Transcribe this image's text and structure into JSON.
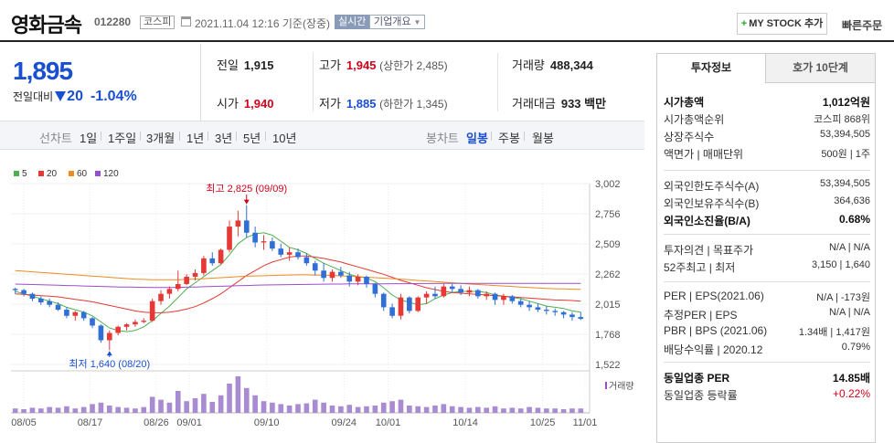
{
  "header": {
    "stock_name": "영화금속",
    "stock_code": "012280",
    "market": "코스피",
    "datetime": "2021.11.04 12:16  기준(장중)",
    "realtime_label": "실시간",
    "overview_label": "기업개요",
    "mystock_label": "MY STOCK 추가",
    "quick_order_label": "빠른주문"
  },
  "price": {
    "current": "1,895",
    "change_label": "전일대비",
    "change_amount": "20",
    "change_pct": "-1.04%"
  },
  "stats": {
    "prev_close_label": "전일",
    "prev_close": "1,915",
    "high_label": "고가",
    "high": "1,945",
    "upper_limit": "(상한가 2,485)",
    "volume_label": "거래량",
    "volume": "488,344",
    "open_label": "시가",
    "open": "1,940",
    "low_label": "저가",
    "low": "1,885",
    "lower_limit": "(하한가 1,345)",
    "amount_label": "거래대금",
    "amount": "933 백만"
  },
  "period_bar": {
    "line_label": "선차트",
    "line_options": [
      "1일",
      "1주일",
      "3개월",
      "1년",
      "3년",
      "5년",
      "10년"
    ],
    "candle_label": "봉차트",
    "candle_options": [
      "일봉",
      "주봉",
      "월봉"
    ],
    "selected_candle": "일봉"
  },
  "chart_data": {
    "type": "candlestick",
    "legend": [
      {
        "name": "5",
        "color": "#4caf50"
      },
      {
        "name": "20",
        "color": "#e53935"
      },
      {
        "name": "60",
        "color": "#ef8a1e"
      },
      {
        "name": "120",
        "color": "#9c4dcc"
      }
    ],
    "yticks": [
      "3,002",
      "2,756",
      "2,509",
      "2,262",
      "2,015",
      "1,768",
      "1,522"
    ],
    "ylim": [
      1522,
      3002
    ],
    "xticks": [
      "08/05",
      "08/17",
      "08/26",
      "09/01",
      "09/10",
      "09/24",
      "10/01",
      "10/14",
      "10/25",
      "11/01"
    ],
    "high_annotation": "최고 2,825 (09/09)",
    "low_annotation": "최저 1,640 (08/20)",
    "volume_label": "거래량",
    "candles": [
      [
        2140,
        2150,
        2100,
        2130
      ],
      [
        2130,
        2140,
        2080,
        2100
      ],
      [
        2100,
        2110,
        2040,
        2060
      ],
      [
        2060,
        2080,
        2010,
        2030
      ],
      [
        2040,
        2060,
        1990,
        2010
      ],
      [
        2010,
        2030,
        1960,
        1970
      ],
      [
        1970,
        1990,
        1900,
        1920
      ],
      [
        1920,
        1960,
        1880,
        1950
      ],
      [
        1950,
        1960,
        1880,
        1900
      ],
      [
        1900,
        1910,
        1820,
        1840
      ],
      [
        1840,
        1850,
        1700,
        1720
      ],
      [
        1720,
        1800,
        1640,
        1780
      ],
      [
        1780,
        1840,
        1760,
        1830
      ],
      [
        1830,
        1860,
        1800,
        1850
      ],
      [
        1850,
        1890,
        1830,
        1870
      ],
      [
        1870,
        1900,
        1860,
        1880
      ],
      [
        1880,
        2060,
        1870,
        2040
      ],
      [
        2040,
        2130,
        2010,
        2100
      ],
      [
        2100,
        2160,
        2060,
        2140
      ],
      [
        2140,
        2290,
        2120,
        2180
      ],
      [
        2180,
        2260,
        2170,
        2240
      ],
      [
        2240,
        2300,
        2210,
        2270
      ],
      [
        2270,
        2410,
        2250,
        2390
      ],
      [
        2390,
        2440,
        2330,
        2350
      ],
      [
        2350,
        2470,
        2340,
        2460
      ],
      [
        2460,
        2700,
        2440,
        2650
      ],
      [
        2650,
        2780,
        2570,
        2700
      ],
      [
        2700,
        2825,
        2560,
        2600
      ],
      [
        2600,
        2650,
        2480,
        2520
      ],
      [
        2520,
        2580,
        2460,
        2530
      ],
      [
        2530,
        2560,
        2450,
        2470
      ],
      [
        2470,
        2510,
        2400,
        2420
      ],
      [
        2420,
        2480,
        2370,
        2440
      ],
      [
        2440,
        2470,
        2380,
        2400
      ],
      [
        2400,
        2430,
        2330,
        2350
      ],
      [
        2350,
        2370,
        2250,
        2290
      ],
      [
        2290,
        2350,
        2200,
        2230
      ],
      [
        2230,
        2300,
        2200,
        2280
      ],
      [
        2280,
        2320,
        2230,
        2250
      ],
      [
        2250,
        2280,
        2160,
        2200
      ],
      [
        2200,
        2260,
        2170,
        2240
      ],
      [
        2240,
        2250,
        2150,
        2180
      ],
      [
        2180,
        2190,
        2070,
        2100
      ],
      [
        2100,
        2110,
        1960,
        1990
      ],
      [
        1990,
        2020,
        1900,
        1920
      ],
      [
        1920,
        2100,
        1890,
        2070
      ],
      [
        2070,
        2080,
        1940,
        1960
      ],
      [
        1960,
        2080,
        1950,
        2070
      ],
      [
        2070,
        2120,
        2020,
        2100
      ],
      [
        2100,
        2160,
        2060,
        2080
      ],
      [
        2080,
        2180,
        2070,
        2160
      ],
      [
        2160,
        2180,
        2110,
        2140
      ],
      [
        2140,
        2170,
        2090,
        2110
      ],
      [
        2110,
        2160,
        2080,
        2130
      ],
      [
        2130,
        2140,
        2060,
        2080
      ],
      [
        2080,
        2120,
        2050,
        2100
      ],
      [
        2100,
        2110,
        2010,
        2050
      ],
      [
        2050,
        2100,
        2010,
        2080
      ],
      [
        2080,
        2090,
        2020,
        2040
      ],
      [
        2040,
        2060,
        1990,
        2010
      ],
      [
        2010,
        2040,
        1960,
        1990
      ],
      [
        1990,
        2020,
        1950,
        1970
      ],
      [
        1970,
        2000,
        1930,
        1960
      ],
      [
        1960,
        1980,
        1920,
        1950
      ],
      [
        1950,
        1960,
        1900,
        1930
      ],
      [
        1930,
        1950,
        1880,
        1910
      ],
      [
        1910,
        1950,
        1885,
        1895
      ]
    ],
    "volumes": [
      6,
      5,
      7,
      6,
      8,
      7,
      9,
      6,
      8,
      12,
      14,
      10,
      8,
      7,
      6,
      8,
      22,
      18,
      14,
      30,
      16,
      20,
      26,
      15,
      24,
      40,
      50,
      34,
      24,
      16,
      14,
      12,
      10,
      12,
      13,
      18,
      14,
      10,
      9,
      11,
      8,
      9,
      10,
      14,
      16,
      18,
      10,
      9,
      8,
      10,
      12,
      9,
      8,
      7,
      8,
      7,
      9,
      6,
      7,
      6,
      8,
      7,
      6,
      6,
      5,
      6,
      6
    ],
    "ma": {
      "5": [
        2120,
        2100,
        2080,
        2060,
        2040,
        2020,
        1990,
        1970,
        1950,
        1920,
        1870,
        1820,
        1800,
        1790,
        1800,
        1830,
        1880,
        1940,
        2000,
        2070,
        2140,
        2190,
        2240,
        2290,
        2340,
        2420,
        2510,
        2560,
        2590,
        2600,
        2580,
        2530,
        2480,
        2460,
        2430,
        2390,
        2350,
        2320,
        2290,
        2260,
        2240,
        2230,
        2200,
        2150,
        2090,
        2050,
        2030,
        2010,
        2020,
        2060,
        2090,
        2110,
        2120,
        2120,
        2120,
        2110,
        2090,
        2080,
        2070,
        2060,
        2040,
        2020,
        2000,
        1990,
        1980,
        1960,
        1950
      ],
      "20": [
        2100,
        2095,
        2090,
        2085,
        2080,
        2075,
        2065,
        2055,
        2045,
        2035,
        2020,
        2005,
        1990,
        1975,
        1960,
        1950,
        1945,
        1945,
        1950,
        1960,
        1975,
        1995,
        2025,
        2060,
        2100,
        2150,
        2200,
        2250,
        2290,
        2330,
        2360,
        2380,
        2400,
        2410,
        2410,
        2400,
        2390,
        2375,
        2360,
        2340,
        2320,
        2300,
        2280,
        2260,
        2235,
        2210,
        2190,
        2170,
        2150,
        2135,
        2120,
        2110,
        2105,
        2100,
        2095,
        2090,
        2085,
        2080,
        2075,
        2070,
        2065,
        2060,
        2055,
        2050,
        2048,
        2045,
        2040
      ],
      "60": [
        2290,
        2285,
        2280,
        2275,
        2270,
        2265,
        2260,
        2255,
        2250,
        2245,
        2240,
        2235,
        2230,
        2225,
        2220,
        2218,
        2216,
        2215,
        2215,
        2216,
        2218,
        2220,
        2224,
        2228,
        2232,
        2236,
        2240,
        2244,
        2246,
        2248,
        2250,
        2252,
        2254,
        2255,
        2255,
        2254,
        2252,
        2250,
        2247,
        2244,
        2240,
        2236,
        2232,
        2228,
        2224,
        2220,
        2215,
        2210,
        2205,
        2200,
        2195,
        2190,
        2185,
        2180,
        2176,
        2172,
        2168,
        2164,
        2160,
        2156,
        2152,
        2148,
        2145,
        2142,
        2140,
        2138,
        2136
      ],
      "120": [
        2180,
        2178,
        2176,
        2174,
        2172,
        2170,
        2168,
        2166,
        2164,
        2162,
        2160,
        2158,
        2156,
        2155,
        2154,
        2153,
        2152,
        2152,
        2152,
        2153,
        2154,
        2156,
        2158,
        2160,
        2162,
        2164,
        2166,
        2168,
        2170,
        2172,
        2173,
        2174,
        2175,
        2176,
        2177,
        2178,
        2179,
        2180,
        2180,
        2181,
        2181,
        2182,
        2182,
        2182,
        2183,
        2183,
        2183,
        2184,
        2184,
        2184,
        2185,
        2185,
        2185,
        2185,
        2186,
        2186,
        2186,
        2186,
        2186,
        2186,
        2186,
        2186,
        2186,
        2186,
        2186,
        2186,
        2186
      ]
    }
  },
  "right_panel": {
    "tab_invest": "투자정보",
    "tab_quote": "호가 10단계",
    "rows1": [
      {
        "l": "시가총액",
        "r": "1,012억원",
        "bold": true
      },
      {
        "l": "시가총액순위",
        "r": "코스피 868위"
      },
      {
        "l": "상장주식수",
        "r": "53,394,505"
      },
      {
        "l": "액면가 | 매매단위",
        "r": "500원 | 1주"
      }
    ],
    "rows2": [
      {
        "l": "외국인한도주식수(A)",
        "r": "53,394,505"
      },
      {
        "l": "외국인보유주식수(B)",
        "r": "364,636"
      },
      {
        "l": "외국인소진율(B/A)",
        "r": "0.68%",
        "bold": true
      }
    ],
    "rows3": [
      {
        "l": "투자의견 | 목표주가",
        "r": "N/A | N/A"
      },
      {
        "l": "52주최고 | 최저",
        "r": "3,150 | 1,640"
      }
    ],
    "rows4": [
      {
        "l": "PER | EPS(2021.06)",
        "r": "N/A | -173원"
      },
      {
        "l": "추정PER | EPS",
        "r": "N/A | N/A"
      },
      {
        "l": "PBR | BPS (2021.06)",
        "r": "1.34배 | 1,417원"
      },
      {
        "l": "배당수익률 | 2020.12",
        "r": "0.79%"
      }
    ],
    "rows5": [
      {
        "l": "동일업종 PER",
        "r": "14.85배",
        "bold": true
      },
      {
        "l": "동일업종 등락률",
        "r": "+0.22%",
        "red": true
      }
    ]
  }
}
